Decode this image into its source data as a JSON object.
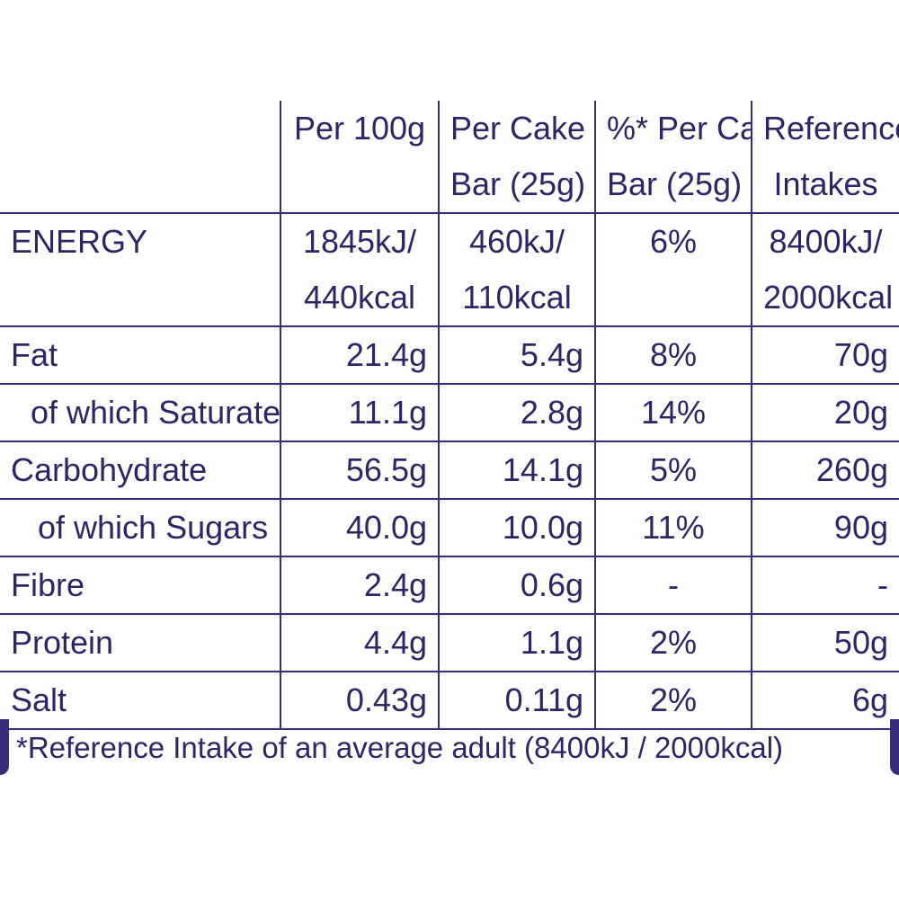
{
  "table": {
    "headers": [
      {
        "line1": "",
        "line2": ""
      },
      {
        "line1": "Per 100g",
        "line2": ""
      },
      {
        "line1": "Per Cake",
        "line2": "Bar (25g)"
      },
      {
        "line1": "%* Per Cake",
        "line2": "Bar (25g)"
      },
      {
        "line1": "Reference",
        "line2": "Intakes"
      }
    ],
    "energy": {
      "label": "ENERGY",
      "per100g_1": "1845kJ/",
      "per100g_2": "440kcal",
      "perbar_1": "460kJ/",
      "perbar_2": "110kcal",
      "pct": "6%",
      "ri_1": "8400kJ/",
      "ri_2": "2000kcal"
    },
    "rows": [
      {
        "label": "Fat",
        "per100g": "21.4g",
        "perbar": "5.4g",
        "pct": "8%",
        "ri": "70g"
      },
      {
        "label": "of which Saturates",
        "per100g": "11.1g",
        "perbar": "2.8g",
        "pct": "14%",
        "ri": "20g"
      },
      {
        "label": "Carbohydrate",
        "per100g": "56.5g",
        "perbar": "14.1g",
        "pct": "5%",
        "ri": "260g"
      },
      {
        "label": "of which Sugars",
        "per100g": "40.0g",
        "perbar": "10.0g",
        "pct": "11%",
        "ri": "90g"
      },
      {
        "label": "Fibre",
        "per100g": "2.4g",
        "perbar": "0.6g",
        "pct": "-",
        "ri": "-"
      },
      {
        "label": "Protein",
        "per100g": "4.4g",
        "perbar": "1.1g",
        "pct": "2%",
        "ri": "50g"
      },
      {
        "label": "Salt",
        "per100g": "0.43g",
        "perbar": "0.11g",
        "pct": "2%",
        "ri": "6g"
      }
    ]
  },
  "footnote": "*Reference Intake of an average adult (8400kJ / 2000kcal)",
  "colors": {
    "ink": "#2e2466",
    "rule": "#3a2a7a",
    "background": "#ffffff"
  }
}
